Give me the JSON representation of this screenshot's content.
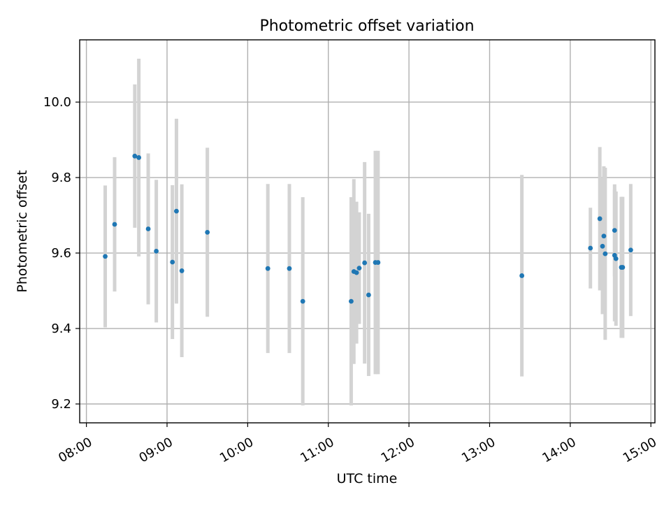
{
  "chart_data": {
    "type": "scatter",
    "title": "Photometric offset variation",
    "xlabel": "UTC time",
    "ylabel": "Photometric offset",
    "xlim": [
      "07:55",
      "15:03"
    ],
    "ylim": [
      9.15,
      10.165
    ],
    "x_ticks": [
      "08:00",
      "09:00",
      "10:00",
      "11:00",
      "12:00",
      "13:00",
      "14:00",
      "15:00"
    ],
    "y_ticks": [
      "9.2",
      "9.4",
      "9.6",
      "9.8",
      "10.0"
    ],
    "grid": true,
    "marker_color": "#1f77b4",
    "errorbar_color": "#d3d3d3",
    "series": [
      {
        "points": [
          {
            "t": "08:14",
            "y": 9.591,
            "err": 0.188
          },
          {
            "t": "08:21",
            "y": 9.676,
            "err": 0.178
          },
          {
            "t": "08:36",
            "y": 9.857,
            "err": 0.19
          },
          {
            "t": "08:39",
            "y": 9.853,
            "err": 0.262
          },
          {
            "t": "08:46",
            "y": 9.664,
            "err": 0.2
          },
          {
            "t": "08:52",
            "y": 9.605,
            "err": 0.189
          },
          {
            "t": "09:04",
            "y": 9.576,
            "err": 0.204
          },
          {
            "t": "09:07",
            "y": 9.711,
            "err": 0.245
          },
          {
            "t": "09:11",
            "y": 9.553,
            "err": 0.229
          },
          {
            "t": "09:30",
            "y": 9.655,
            "err": 0.224
          },
          {
            "t": "10:15",
            "y": 9.559,
            "err": 0.224
          },
          {
            "t": "10:31",
            "y": 9.559,
            "err": 0.224
          },
          {
            "t": "10:41",
            "y": 9.472,
            "err": 0.276
          },
          {
            "t": "11:17",
            "y": 9.472,
            "err": 0.276
          },
          {
            "t": "11:19",
            "y": 9.551,
            "err": 0.245
          },
          {
            "t": "11:21",
            "y": 9.548,
            "err": 0.188
          },
          {
            "t": "11:23",
            "y": 9.56,
            "err": 0.148
          },
          {
            "t": "11:27",
            "y": 9.574,
            "err": 0.267
          },
          {
            "t": "11:30",
            "y": 9.489,
            "err": 0.215
          },
          {
            "t": "11:35",
            "y": 9.575,
            "err": 0.296
          },
          {
            "t": "11:37",
            "y": 9.575,
            "err": 0.296
          },
          {
            "t": "13:24",
            "y": 9.54,
            "err": 0.267
          },
          {
            "t": "14:15",
            "y": 9.613,
            "err": 0.107
          },
          {
            "t": "14:22",
            "y": 9.691,
            "err": 0.19
          },
          {
            "t": "14:24",
            "y": 9.618,
            "err": 0.18
          },
          {
            "t": "14:25",
            "y": 9.645,
            "err": 0.185
          },
          {
            "t": "14:26",
            "y": 9.598,
            "err": 0.228
          },
          {
            "t": "14:33",
            "y": 9.66,
            "err": 0.122
          },
          {
            "t": "14:33",
            "y": 9.594,
            "err": 0.175
          },
          {
            "t": "14:34",
            "y": 9.585,
            "err": 0.178
          },
          {
            "t": "14:38",
            "y": 9.562,
            "err": 0.187
          },
          {
            "t": "14:39",
            "y": 9.562,
            "err": 0.187
          },
          {
            "t": "14:45",
            "y": 9.608,
            "err": 0.175
          }
        ]
      }
    ]
  }
}
